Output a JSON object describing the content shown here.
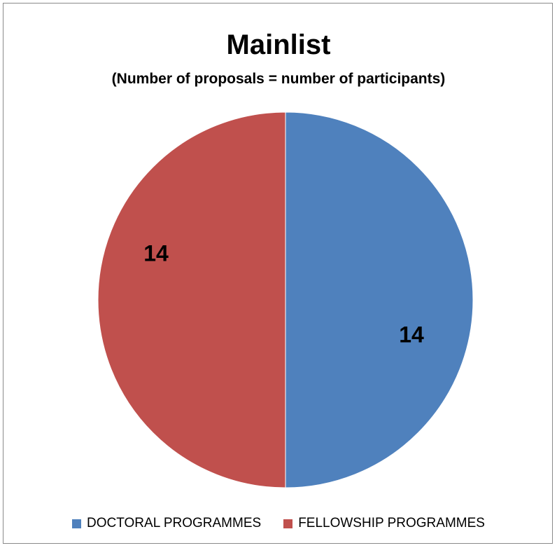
{
  "chart_data": {
    "type": "pie",
    "title": "Mainlist",
    "subtitle": "(Number of proposals = number of participants)",
    "series": [
      {
        "name": "DOCTORAL PROGRAMMES",
        "value": 14,
        "label": "14",
        "color": "#4F81BD"
      },
      {
        "name": "FELLOWSHIP PROGRAMMES",
        "value": 14,
        "label": "14",
        "color": "#C0504D"
      }
    ],
    "legend_position": "bottom",
    "start_angle": "12 o'clock",
    "direction": "clockwise"
  }
}
